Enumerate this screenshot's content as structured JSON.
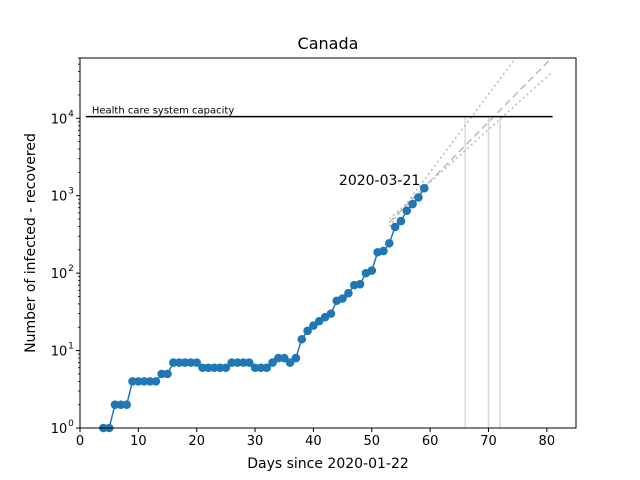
{
  "chart_data": {
    "type": "line",
    "title": "Canada",
    "xlabel": "Days since 2020-01-22",
    "ylabel": "Number of infected - recovered",
    "x_scale": "linear",
    "y_scale": "log",
    "xlim": [
      0,
      85
    ],
    "ylim": [
      1,
      60000
    ],
    "x_ticks": [
      0,
      10,
      20,
      30,
      40,
      50,
      60,
      70,
      80
    ],
    "y_ticks": [
      {
        "value": 1,
        "base": "10",
        "exp": "0"
      },
      {
        "value": 10,
        "base": "10",
        "exp": "1"
      },
      {
        "value": 100,
        "base": "10",
        "exp": "2"
      },
      {
        "value": 1000,
        "base": "10",
        "exp": "3"
      },
      {
        "value": 10000,
        "base": "10",
        "exp": "4"
      }
    ],
    "grid": false,
    "colors": {
      "series": "#1f77b4",
      "capacity": "#000000",
      "projection": "#bbbbbb",
      "vline": "#d9d9d9"
    },
    "series": [
      {
        "x": [
          4,
          5,
          6,
          7,
          8,
          9,
          10,
          11,
          12,
          13,
          14,
          15,
          16,
          17,
          18,
          19,
          20,
          21,
          22,
          23,
          24,
          25,
          26,
          27,
          28,
          29,
          30,
          31,
          32,
          33,
          34,
          35,
          36,
          37,
          38,
          39,
          40,
          41,
          42,
          43,
          44,
          45,
          46,
          47,
          48,
          49,
          50,
          51,
          52,
          53,
          54,
          55,
          56,
          57,
          58,
          59
        ],
        "y": [
          1,
          1,
          2,
          2,
          2,
          4,
          4,
          4,
          4,
          4,
          5,
          5,
          7,
          7,
          7,
          7,
          7,
          6,
          6,
          6,
          6,
          6,
          7,
          7,
          7,
          7,
          6,
          6,
          6,
          7,
          8,
          8,
          7,
          8,
          14,
          18,
          21,
          24,
          27,
          30,
          44,
          47,
          55,
          70,
          72,
          100,
          108,
          186,
          193,
          243,
          395,
          470,
          640,
          780,
          950,
          1250
        ]
      }
    ],
    "capacity_line": {
      "label": "Health care system capacity",
      "value": 10500,
      "x_range": [
        1,
        81
      ]
    },
    "annotation": {
      "text": "2020-03-21",
      "x": 59,
      "y": 1250
    },
    "projections": [
      {
        "style": "dashed",
        "x": [
          53,
          81
        ],
        "y": [
          450,
          62000
        ]
      },
      {
        "style": "dotted",
        "x": [
          53,
          81
        ],
        "y": [
          400,
          260000
        ]
      },
      {
        "style": "dotted",
        "x": [
          53,
          81
        ],
        "y": [
          500,
          40000
        ]
      }
    ],
    "projection_vlines": [
      66,
      70,
      72
    ]
  }
}
